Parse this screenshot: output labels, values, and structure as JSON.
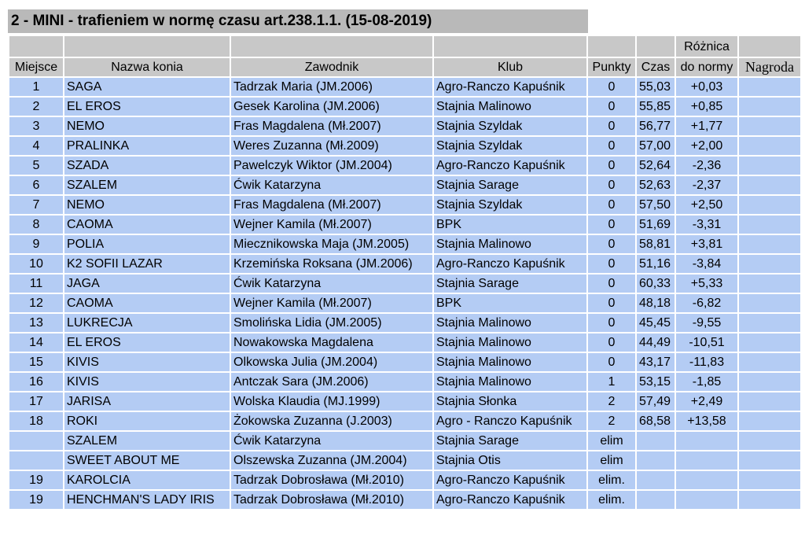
{
  "title": "2 - MINI - trafieniem w normę czasu art.238.1.1. (15-08-2019)",
  "headers": {
    "diff_top": "Różnica",
    "place": "Miejsce",
    "horse": "Nazwa konia",
    "rider": "Zawodnik",
    "club": "Klub",
    "points": "Punkty",
    "time": "Czas",
    "diff": "do normy",
    "prize": "Nagroda"
  },
  "rows": [
    {
      "place": "1",
      "horse": "SAGA",
      "rider": "Tadrzak Maria (JM.2006)",
      "club": "Agro-Ranczo Kapuśnik",
      "points": "0",
      "time": "55,03",
      "diff": "+0,03",
      "prize": ""
    },
    {
      "place": "2",
      "horse": "EL EROS",
      "rider": "Gesek Karolina (JM.2006)",
      "club": "Stajnia Malinowo",
      "points": "0",
      "time": "55,85",
      "diff": "+0,85",
      "prize": ""
    },
    {
      "place": "3",
      "horse": "NEMO",
      "rider": "Fras Magdalena (Mł.2007)",
      "club": "Stajnia Szyldak",
      "points": "0",
      "time": "56,77",
      "diff": "+1,77",
      "prize": ""
    },
    {
      "place": "4",
      "horse": "PRALINKA",
      "rider": "Weres Zuzanna (Mł.2009)",
      "club": "Stajnia Szyldak",
      "points": "0",
      "time": "57,00",
      "diff": "+2,00",
      "prize": ""
    },
    {
      "place": "5",
      "horse": "SZADA",
      "rider": "Pawelczyk Wiktor (JM.2004)",
      "club": "Agro-Ranczo Kapuśnik",
      "points": "0",
      "time": "52,64",
      "diff": "-2,36",
      "prize": ""
    },
    {
      "place": "6",
      "horse": "SZALEM",
      "rider": "Ćwik Katarzyna",
      "club": "Stajnia Sarage",
      "points": "0",
      "time": "52,63",
      "diff": "-2,37",
      "prize": ""
    },
    {
      "place": "7",
      "horse": "NEMO",
      "rider": "Fras Magdalena (Mł.2007)",
      "club": "Stajnia Szyldak",
      "points": "0",
      "time": "57,50",
      "diff": "+2,50",
      "prize": ""
    },
    {
      "place": "8",
      "horse": "CAOMA",
      "rider": "Wejner Kamila (Mł.2007)",
      "club": "BPK",
      "points": "0",
      "time": "51,69",
      "diff": "-3,31",
      "prize": ""
    },
    {
      "place": "9",
      "horse": "POLIA",
      "rider": "Miecznikowska Maja (JM.2005)",
      "club": "Stajnia Malinowo",
      "points": "0",
      "time": "58,81",
      "diff": "+3,81",
      "prize": ""
    },
    {
      "place": "10",
      "horse": "K2 SOFII LAZAR",
      "rider": "Krzemińska Roksana (JM.2006)",
      "club": "Agro-Ranczo Kapuśnik",
      "points": "0",
      "time": "51,16",
      "diff": "-3,84",
      "prize": ""
    },
    {
      "place": "11",
      "horse": "JAGA",
      "rider": "Ćwik Katarzyna",
      "club": "Stajnia Sarage",
      "points": "0",
      "time": "60,33",
      "diff": "+5,33",
      "prize": ""
    },
    {
      "place": "12",
      "horse": "CAOMA",
      "rider": "Wejner Kamila (Mł.2007)",
      "club": "BPK",
      "points": "0",
      "time": "48,18",
      "diff": "-6,82",
      "prize": ""
    },
    {
      "place": "13",
      "horse": "LUKRECJA",
      "rider": "Smolińska Lidia (JM.2005)",
      "club": "Stajnia Malinowo",
      "points": "0",
      "time": "45,45",
      "diff": "-9,55",
      "prize": ""
    },
    {
      "place": "14",
      "horse": "EL EROS",
      "rider": "Nowakowska Magdalena",
      "club": "Stajnia Malinowo",
      "points": "0",
      "time": "44,49",
      "diff": "-10,51",
      "prize": ""
    },
    {
      "place": "15",
      "horse": "KIVIS",
      "rider": "Olkowska Julia (JM.2004)",
      "club": "Stajnia Malinowo",
      "points": "0",
      "time": "43,17",
      "diff": "-11,83",
      "prize": ""
    },
    {
      "place": "16",
      "horse": "KIVIS",
      "rider": "Antczak Sara (JM.2006)",
      "club": "Stajnia Malinowo",
      "points": "1",
      "time": "53,15",
      "diff": "-1,85",
      "prize": ""
    },
    {
      "place": "17",
      "horse": "JARISA",
      "rider": "Wolska Klaudia (MJ.1999)",
      "club": "Stajnia Słonka",
      "points": "2",
      "time": "57,49",
      "diff": "+2,49",
      "prize": ""
    },
    {
      "place": "18",
      "horse": "ROKI",
      "rider": "Żokowska Zuzanna (J.2003)",
      "club": "Agro - Ranczo Kapuśnik",
      "points": "2",
      "time": "68,58",
      "diff": "+13,58",
      "prize": ""
    },
    {
      "place": "",
      "horse": "SZALEM",
      "rider": "Ćwik Katarzyna",
      "club": "Stajnia Sarage",
      "points": "elim",
      "time": "",
      "diff": "",
      "prize": ""
    },
    {
      "place": "",
      "horse": "SWEET ABOUT ME",
      "rider": "Olszewska Zuzanna (JM.2004)",
      "club": "Stajnia Otis",
      "points": "elim",
      "time": "",
      "diff": "",
      "prize": ""
    },
    {
      "place": "19",
      "horse": "KAROLCIA",
      "rider": "Tadrzak Dobrosława (Mł.2010)",
      "club": "Agro-Ranczo Kapuśnik",
      "points": "elim.",
      "time": "",
      "diff": "",
      "prize": ""
    },
    {
      "place": "19",
      "horse": "HENCHMAN'S LADY IRIS",
      "rider": "Tadrzak Dobrosława (Mł.2010)",
      "club": "Agro-Ranczo Kapuśnik",
      "points": "elim.",
      "time": "",
      "diff": "",
      "prize": ""
    }
  ]
}
